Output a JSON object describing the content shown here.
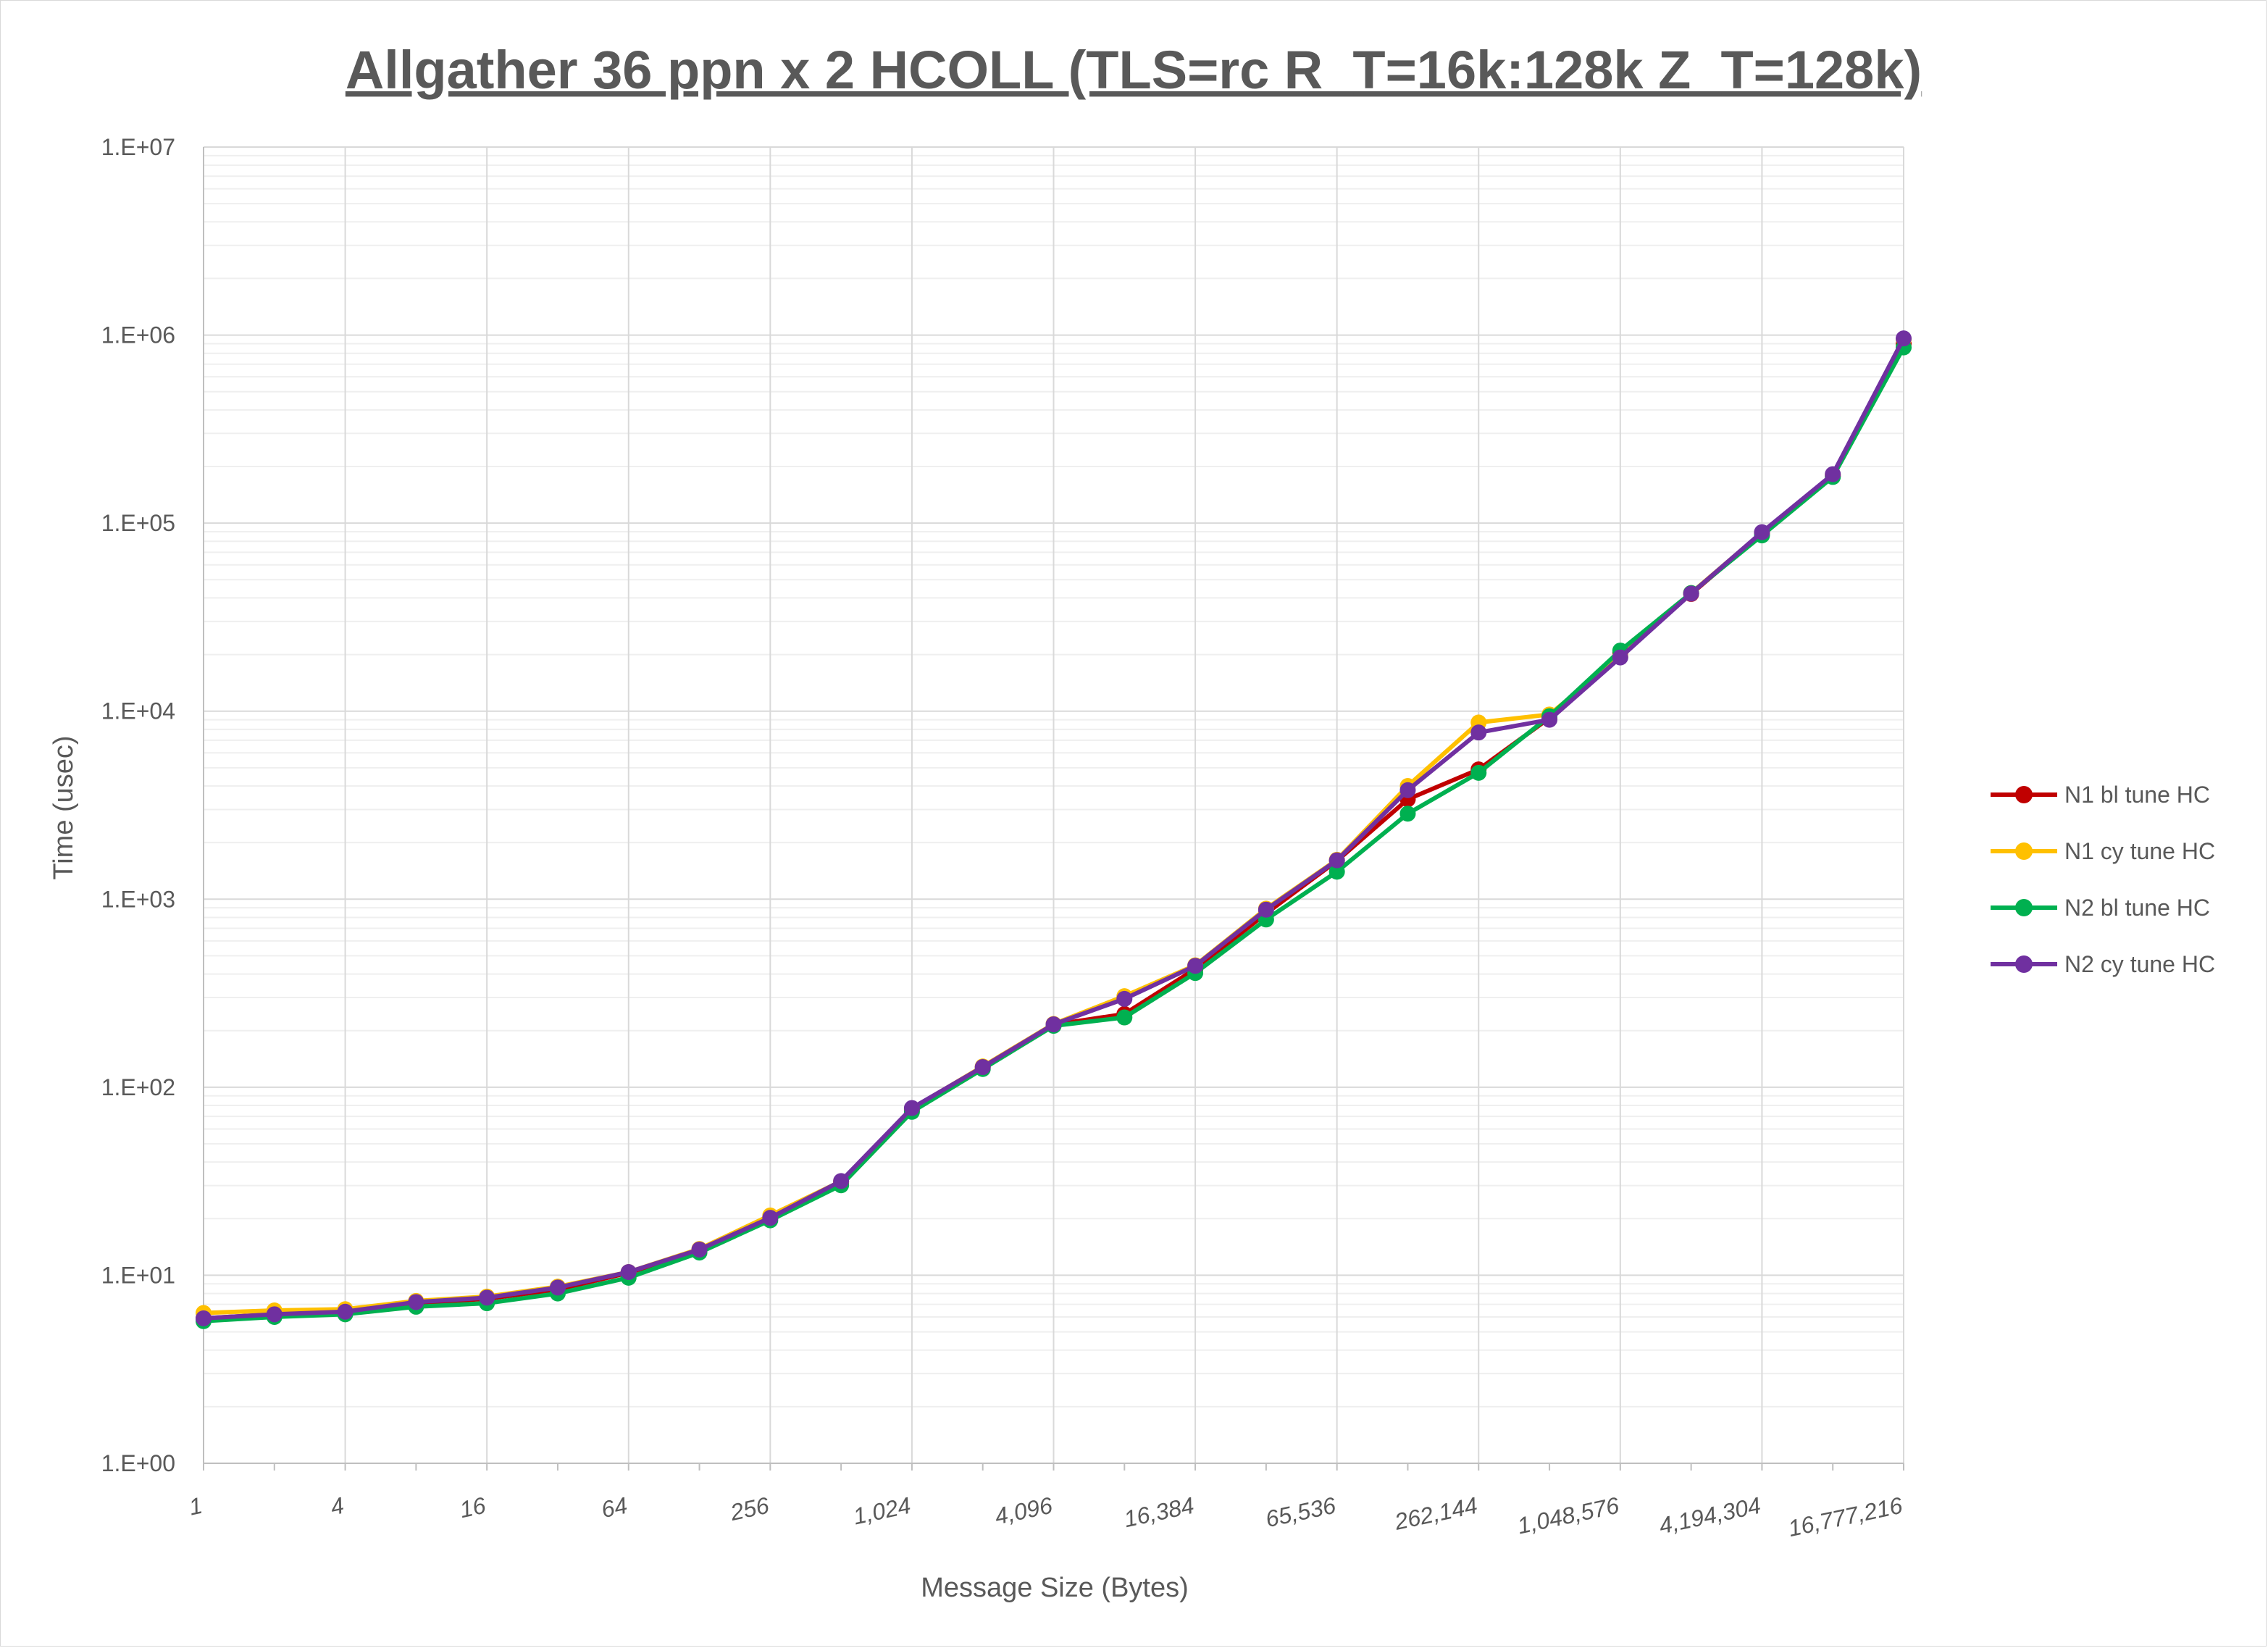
{
  "chart_data": {
    "type": "line",
    "title": "Allgather 36 ppn x 2 HCOLL (TLS=rc R_T=16k:128k Z_T=128k)",
    "xlabel": "Message Size (Bytes)",
    "ylabel": "Time (usec)",
    "xscale": "log2",
    "yscale": "log10",
    "ylim": [
      1,
      10000000
    ],
    "grid": true,
    "legend_position": "right",
    "x": [
      1,
      2,
      4,
      8,
      16,
      32,
      64,
      128,
      256,
      512,
      1024,
      2048,
      4096,
      8192,
      16384,
      32768,
      65536,
      131072,
      262144,
      524288,
      1048576,
      2097152,
      4194304,
      8388608,
      16777216
    ],
    "x_tick_labels": [
      "1",
      "4",
      "16",
      "64",
      "256",
      "1,024",
      "4,096",
      "16,384",
      "65,536",
      "262,144",
      "1,048,576",
      "4,194,304",
      "16,777,216"
    ],
    "y_tick_labels": [
      "1.E+00",
      "1.E+01",
      "1.E+02",
      "1.E+03",
      "1.E+04",
      "1.E+05",
      "1.E+06",
      "1.E+07"
    ],
    "series": [
      {
        "name": "N1 bl tune HC",
        "color": "#c00000",
        "values": [
          5.9,
          6.2,
          6.4,
          7.1,
          7.5,
          8.4,
          10.3,
          13.6,
          20.3,
          31.3,
          76,
          128,
          215,
          245,
          425,
          840,
          1600,
          3400,
          4900,
          9200,
          20500,
          42000,
          88000,
          178000,
          900000
        ]
      },
      {
        "name": "N1 cy tune HC",
        "color": "#ffc000",
        "values": [
          6.3,
          6.5,
          6.6,
          7.3,
          7.7,
          8.7,
          10.4,
          13.8,
          20.8,
          31.6,
          77,
          129,
          217,
          305,
          445,
          890,
          1620,
          4000,
          8700,
          9600,
          19500,
          42500,
          89000,
          181000,
          950000
        ]
      },
      {
        "name": "N2 bl tune HC",
        "color": "#00b050",
        "values": [
          5.7,
          6.0,
          6.2,
          6.8,
          7.1,
          8.0,
          9.7,
          13.2,
          19.6,
          30.1,
          74,
          125,
          212,
          235,
          405,
          780,
          1400,
          2850,
          4700,
          9400,
          21000,
          42500,
          86000,
          176000,
          860000
        ]
      },
      {
        "name": "N2 cy tune HC",
        "color": "#7030a0",
        "values": [
          5.9,
          6.2,
          6.4,
          7.2,
          7.6,
          8.6,
          10.4,
          13.7,
          20.2,
          31.7,
          77.5,
          128,
          216,
          295,
          442,
          880,
          1610,
          3800,
          7700,
          9000,
          19300,
          42200,
          89500,
          182000,
          960000
        ]
      }
    ]
  }
}
